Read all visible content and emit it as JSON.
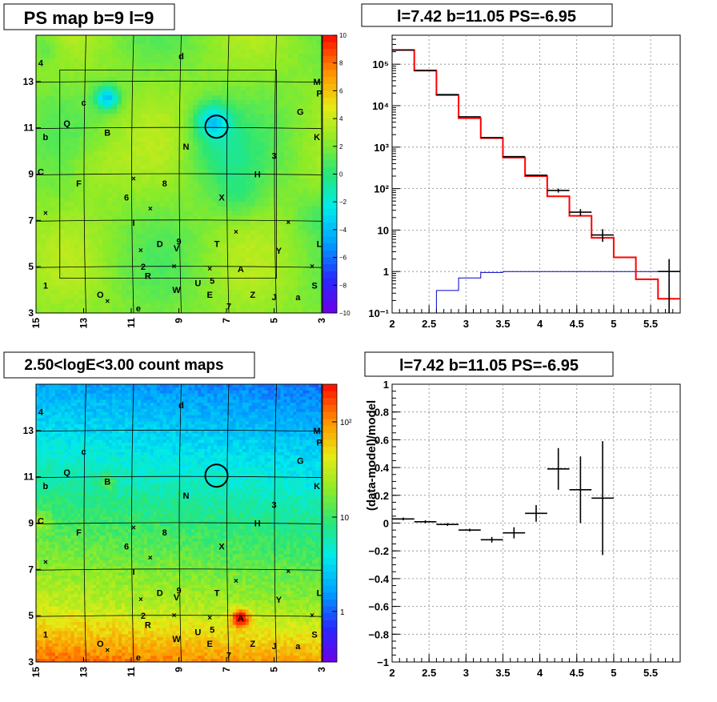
{
  "panels": {
    "ps_map": {
      "title": "PS map b=9 l=9",
      "x_ticks": [
        "15",
        "13",
        "11",
        "9",
        "7",
        "5",
        "3"
      ],
      "y_ticks": [
        "3",
        "5",
        "7",
        "9",
        "11",
        "13"
      ],
      "colorbar_ticks": [
        "10",
        "8",
        "6",
        "4",
        "2",
        "0",
        "−2",
        "−4",
        "−6",
        "−8",
        "−10"
      ]
    },
    "count_map": {
      "title": "2.50<logE<3.00 count maps",
      "x_ticks": [
        "15",
        "13",
        "11",
        "9",
        "7",
        "5",
        "3"
      ],
      "y_ticks": [
        "3",
        "5",
        "7",
        "9",
        "11",
        "13"
      ],
      "colorbar_ticks": [
        "10²",
        "10",
        "1"
      ]
    },
    "spectrum": {
      "title": "l=7.42 b=11.05 PS=-6.95"
    },
    "residual": {
      "title": "l=7.42 b=11.05 PS=-6.95",
      "ylabel": "(data-model)/model"
    }
  },
  "map_labels": [
    {
      "t": "d",
      "x": 8.9,
      "y": 14.1
    },
    {
      "t": "4",
      "x": 14.8,
      "y": 13.8
    },
    {
      "t": "M",
      "x": 3.2,
      "y": 13.0
    },
    {
      "t": "P",
      "x": 3.1,
      "y": 12.5
    },
    {
      "t": "c",
      "x": 13.0,
      "y": 12.1
    },
    {
      "t": "G",
      "x": 3.9,
      "y": 11.7
    },
    {
      "t": "Q",
      "x": 13.7,
      "y": 11.2
    },
    {
      "t": "b",
      "x": 14.6,
      "y": 10.6
    },
    {
      "t": "B",
      "x": 12.0,
      "y": 10.8
    },
    {
      "t": "K",
      "x": 3.2,
      "y": 10.6
    },
    {
      "t": "N",
      "x": 8.7,
      "y": 10.2
    },
    {
      "t": "3",
      "x": 5.0,
      "y": 9.8
    },
    {
      "t": "C",
      "x": 14.8,
      "y": 9.1
    },
    {
      "t": "H",
      "x": 5.7,
      "y": 9.0
    },
    {
      "t": "F",
      "x": 13.2,
      "y": 8.6
    },
    {
      "t": "8",
      "x": 9.6,
      "y": 8.6
    },
    {
      "t": "6",
      "x": 11.2,
      "y": 8.0
    },
    {
      "t": "X",
      "x": 7.2,
      "y": 8.0
    },
    {
      "t": "I",
      "x": 10.9,
      "y": 6.9
    },
    {
      "t": "D",
      "x": 9.8,
      "y": 6.0
    },
    {
      "t": "9",
      "x": 9.0,
      "y": 6.1
    },
    {
      "t": "V",
      "x": 9.1,
      "y": 5.8
    },
    {
      "t": "T",
      "x": 7.4,
      "y": 6.0
    },
    {
      "t": "L",
      "x": 3.1,
      "y": 6.0
    },
    {
      "t": "Y",
      "x": 4.8,
      "y": 5.7
    },
    {
      "t": "2",
      "x": 10.5,
      "y": 5.0
    },
    {
      "t": "A",
      "x": 6.4,
      "y": 4.9
    },
    {
      "t": "R",
      "x": 10.3,
      "y": 4.6
    },
    {
      "t": "1",
      "x": 14.6,
      "y": 4.2
    },
    {
      "t": "5",
      "x": 7.6,
      "y": 4.4
    },
    {
      "t": "U",
      "x": 8.2,
      "y": 4.3
    },
    {
      "t": "W",
      "x": 9.1,
      "y": 4.0
    },
    {
      "t": "S",
      "x": 3.3,
      "y": 4.2
    },
    {
      "t": "O",
      "x": 12.3,
      "y": 3.8
    },
    {
      "t": "E",
      "x": 7.7,
      "y": 3.8
    },
    {
      "t": "Z",
      "x": 5.9,
      "y": 3.8
    },
    {
      "t": "J",
      "x": 5.0,
      "y": 3.7
    },
    {
      "t": "a",
      "x": 4.0,
      "y": 3.7
    },
    {
      "t": "7",
      "x": 6.9,
      "y": 3.3
    },
    {
      "t": "e",
      "x": 10.7,
      "y": 3.2
    }
  ],
  "map_crosses": [
    {
      "x": 10.9,
      "y": 8.8
    },
    {
      "x": 14.6,
      "y": 7.3
    },
    {
      "x": 10.2,
      "y": 7.5
    },
    {
      "x": 4.4,
      "y": 6.9
    },
    {
      "x": 6.6,
      "y": 6.5
    },
    {
      "x": 10.6,
      "y": 5.7
    },
    {
      "x": 9.2,
      "y": 5.0
    },
    {
      "x": 7.7,
      "y": 4.9
    },
    {
      "x": 3.4,
      "y": 5.0
    },
    {
      "x": 12.0,
      "y": 3.5
    }
  ],
  "colors": {
    "data": "#000000",
    "model": "#ff0000",
    "third": "#0000cc",
    "marker": "#000000"
  },
  "chart_data": [
    {
      "type": "heatmap",
      "title": "PS map b=9 l=9",
      "xlim": [
        15,
        3
      ],
      "ylim": [
        3,
        15
      ],
      "zlim": [
        -10,
        10
      ],
      "circle": {
        "x": 7.42,
        "y": 11.05
      }
    },
    {
      "type": "heatmap",
      "title": "2.50<logE<3.00 count maps",
      "xlim": [
        15,
        3
      ],
      "ylim": [
        3,
        15
      ],
      "log_z": true,
      "circle": {
        "x": 7.42,
        "y": 11.05
      }
    },
    {
      "type": "line",
      "title": "l=7.42 b=11.05 PS=-6.95",
      "xlim": [
        2,
        5.9
      ],
      "ylim": [
        0.1,
        500000
      ],
      "log_y": true,
      "grid": true,
      "x_ticks": [
        2,
        2.5,
        3,
        3.5,
        4,
        4.5,
        5,
        5.5
      ],
      "series": [
        {
          "bins": [
            [
              2.0,
              2.3,
              220000
            ],
            [
              2.3,
              2.6,
              70000
            ],
            [
              2.6,
              2.9,
              18000
            ],
            [
              2.9,
              3.2,
              5000
            ],
            [
              3.2,
              3.5,
              1650
            ],
            [
              3.5,
              3.8,
              560
            ],
            [
              3.8,
              4.1,
              200
            ],
            [
              4.1,
              4.4,
              65
            ],
            [
              4.4,
              4.7,
              22
            ],
            [
              4.7,
              5.0,
              6.5
            ],
            [
              5.0,
              5.3,
              2.2
            ],
            [
              5.3,
              5.6,
              0.65
            ],
            [
              5.6,
              5.9,
              0.22
            ]
          ]
        },
        {
          "points": [
            {
              "x": 2.15,
              "y": 220000
            },
            {
              "x": 2.45,
              "y": 71000
            },
            {
              "x": 2.75,
              "y": 18500
            },
            {
              "x": 3.05,
              "y": 5400
            },
            {
              "x": 3.35,
              "y": 1700
            },
            {
              "x": 3.65,
              "y": 590
            },
            {
              "x": 3.95,
              "y": 210
            },
            {
              "x": 4.25,
              "y": 90,
              "lo": 80,
              "hi": 100
            },
            {
              "x": 4.55,
              "y": 27,
              "lo": 22,
              "hi": 32
            },
            {
              "x": 4.85,
              "y": 7.6,
              "lo": 5.2,
              "hi": 10.5
            },
            {
              "x": 5.75,
              "y": 1.0,
              "lo": 0.1,
              "hi": 2.0
            }
          ]
        },
        {
          "bins": [
            [
              2.6,
              2.9,
              0.35
            ],
            [
              2.9,
              3.2,
              0.7
            ],
            [
              3.2,
              3.5,
              0.95
            ],
            [
              3.5,
              5.9,
              1.0
            ]
          ]
        }
      ]
    },
    {
      "type": "scatter",
      "title": "l=7.42 b=11.05 PS=-6.95",
      "ylabel": "(data-model)/model",
      "xlim": [
        2,
        5.9
      ],
      "ylim": [
        -1,
        1
      ],
      "grid": true,
      "x_ticks": [
        2,
        2.5,
        3,
        3.5,
        4,
        4.5,
        5,
        5.5
      ],
      "y_ticks": [
        -1,
        -0.8,
        -0.6,
        -0.4,
        -0.2,
        0,
        0.2,
        0.4,
        0.6,
        0.8,
        1
      ],
      "points": [
        {
          "x": 2.15,
          "y": 0.03,
          "xerr": 0.15,
          "yerr": 0.01
        },
        {
          "x": 2.45,
          "y": 0.01,
          "xerr": 0.15,
          "yerr": 0.01
        },
        {
          "x": 2.75,
          "y": -0.01,
          "xerr": 0.15,
          "yerr": 0.01
        },
        {
          "x": 3.05,
          "y": -0.05,
          "xerr": 0.15,
          "yerr": 0.01
        },
        {
          "x": 3.35,
          "y": -0.12,
          "xerr": 0.15,
          "yerr": 0.02
        },
        {
          "x": 3.65,
          "y": -0.07,
          "xerr": 0.15,
          "yerr": 0.04
        },
        {
          "x": 3.95,
          "y": 0.07,
          "xerr": 0.15,
          "yerr": 0.06
        },
        {
          "x": 4.25,
          "y": 0.39,
          "xerr": 0.15,
          "yerr": 0.15
        },
        {
          "x": 4.55,
          "y": 0.24,
          "xerr": 0.15,
          "yerr": 0.24
        },
        {
          "x": 4.85,
          "y": 0.18,
          "xerr": 0.15,
          "yerr": 0.41
        }
      ]
    }
  ]
}
